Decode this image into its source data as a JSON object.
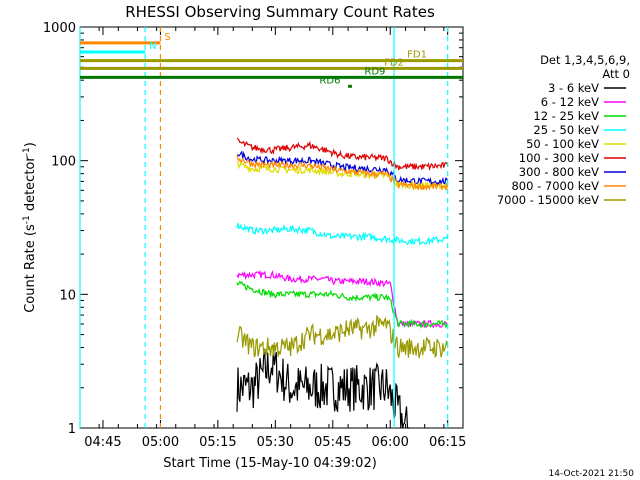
{
  "chart_data": {
    "type": "line",
    "title": "RHESSI Observing Summary Count Rates",
    "xlabel": "Start Time (15-May-10 04:39:02)",
    "ylabel_parts": [
      "Count Rate (s",
      "-1",
      " detector",
      "-1",
      ")"
    ],
    "yscale": "log",
    "ylim": [
      1,
      1000
    ],
    "y_ticks": [
      "1",
      "10",
      "100",
      "1000"
    ],
    "x_ticks": [
      "04:45",
      "05:00",
      "05:15",
      "05:30",
      "05:45",
      "06:00",
      "06:15"
    ],
    "x_tick_minutes": [
      6,
      21,
      36,
      51,
      66,
      81,
      96
    ],
    "xlim_minutes": [
      0,
      100
    ],
    "grid": false,
    "legend_header": [
      "Det 1,3,4,5,6,9,",
      "Att 0"
    ],
    "legend_position": "right",
    "series": [
      {
        "name": "3 - 6 keV",
        "color": "#000000",
        "segments": [
          [
            41,
            2
          ],
          [
            45,
            2
          ],
          [
            50,
            3
          ],
          [
            55,
            2
          ],
          [
            60,
            2
          ],
          [
            64,
            2
          ],
          [
            65,
            2
          ],
          [
            70,
            2
          ],
          [
            75,
            2
          ],
          [
            80,
            2
          ],
          [
            85,
            1
          ],
          [
            86,
            1
          ]
        ]
      },
      {
        "name": "6 - 12 keV",
        "color": "#ff00ff",
        "segments": [
          [
            41,
            14
          ],
          [
            45,
            14
          ],
          [
            50,
            14
          ],
          [
            55,
            13
          ],
          [
            60,
            13
          ],
          [
            64,
            13
          ],
          [
            66,
            12.5
          ],
          [
            70,
            12.5
          ],
          [
            75,
            12.5
          ],
          [
            80,
            12
          ],
          [
            81,
            12
          ],
          [
            83,
            6
          ],
          [
            90,
            6
          ],
          [
            96,
            6
          ]
        ]
      },
      {
        "name": "12 - 25 keV",
        "color": "#00dd00",
        "segments": [
          [
            41,
            12
          ],
          [
            45,
            11
          ],
          [
            50,
            10
          ],
          [
            55,
            10
          ],
          [
            60,
            10
          ],
          [
            64,
            10
          ],
          [
            66,
            10
          ],
          [
            70,
            9.5
          ],
          [
            75,
            9.5
          ],
          [
            80,
            9.5
          ],
          [
            81,
            9
          ],
          [
            83,
            6
          ],
          [
            90,
            6
          ],
          [
            96,
            6
          ]
        ]
      },
      {
        "name": "25 - 50 keV",
        "color": "#00ffff",
        "segments": [
          [
            41,
            33
          ],
          [
            45,
            30
          ],
          [
            50,
            30
          ],
          [
            55,
            31
          ],
          [
            60,
            30
          ],
          [
            64,
            28
          ],
          [
            66,
            27
          ],
          [
            70,
            27
          ],
          [
            75,
            27
          ],
          [
            80,
            26
          ],
          [
            85,
            25
          ],
          [
            90,
            25
          ],
          [
            96,
            26
          ]
        ]
      },
      {
        "name": "50 - 100 keV",
        "color": "#dddd00",
        "segments": [
          [
            41,
            95
          ],
          [
            45,
            87
          ],
          [
            50,
            87
          ],
          [
            55,
            85
          ],
          [
            60,
            85
          ],
          [
            64,
            83
          ],
          [
            68,
            80
          ],
          [
            72,
            80
          ],
          [
            75,
            78
          ],
          [
            80,
            77
          ],
          [
            83,
            66
          ],
          [
            90,
            65
          ],
          [
            96,
            65
          ]
        ]
      },
      {
        "name": "100 - 300 keV",
        "color": "#dd0000",
        "segments": [
          [
            41,
            140
          ],
          [
            45,
            125
          ],
          [
            50,
            120
          ],
          [
            55,
            125
          ],
          [
            60,
            130
          ],
          [
            64,
            120
          ],
          [
            68,
            110
          ],
          [
            72,
            106
          ],
          [
            75,
            106
          ],
          [
            80,
            104
          ],
          [
            83,
            90
          ],
          [
            90,
            90
          ],
          [
            96,
            92
          ]
        ]
      },
      {
        "name": "300 - 800 keV",
        "color": "#0000dd",
        "segments": [
          [
            41,
            115
          ],
          [
            45,
            102
          ],
          [
            50,
            100
          ],
          [
            55,
            100
          ],
          [
            60,
            100
          ],
          [
            64,
            95
          ],
          [
            68,
            90
          ],
          [
            72,
            88
          ],
          [
            75,
            87
          ],
          [
            80,
            86
          ],
          [
            83,
            72
          ],
          [
            90,
            70
          ],
          [
            96,
            70
          ]
        ]
      },
      {
        "name": "800 - 7000 keV",
        "color": "#ff8800",
        "segments": [
          [
            41,
            105
          ],
          [
            45,
            95
          ],
          [
            50,
            92
          ],
          [
            55,
            93
          ],
          [
            60,
            92
          ],
          [
            64,
            88
          ],
          [
            68,
            84
          ],
          [
            72,
            82
          ],
          [
            75,
            80
          ],
          [
            80,
            79
          ],
          [
            83,
            66
          ],
          [
            90,
            64
          ],
          [
            96,
            64
          ]
        ]
      },
      {
        "name": "7000 - 15000 keV",
        "color": "#999900",
        "segments": [
          [
            41,
            5
          ],
          [
            45,
            4
          ],
          [
            50,
            4
          ],
          [
            55,
            4
          ],
          [
            60,
            5
          ],
          [
            64,
            5
          ],
          [
            66,
            5
          ],
          [
            70,
            5.5
          ],
          [
            75,
            5.5
          ],
          [
            80,
            6
          ],
          [
            83,
            4
          ],
          [
            90,
            4
          ],
          [
            96,
            4
          ]
        ]
      }
    ],
    "flags": [
      {
        "label": "S",
        "color": "#ff8800",
        "start_minute": 0,
        "end_minute": 21,
        "level": 760
      },
      {
        "label": "N",
        "color": "#00ffff",
        "start_minute": 0,
        "end_minute": 17,
        "level": 650
      },
      {
        "label": "FD1",
        "color": "#999900",
        "start_minute": 0,
        "end_minute": 100,
        "level": 560
      },
      {
        "label": "FD2",
        "color": "#999900",
        "start_minute": 0,
        "end_minute": 100,
        "level": 490
      },
      {
        "label": "RD9",
        "color": "#007700",
        "start_minute": 0,
        "end_minute": 100,
        "level": 420
      },
      {
        "label": "RD6",
        "color": "#007700",
        "start_minute": 70,
        "end_minute": 71,
        "level": 360
      }
    ],
    "footer": "14-Oct-2021 21:50"
  }
}
